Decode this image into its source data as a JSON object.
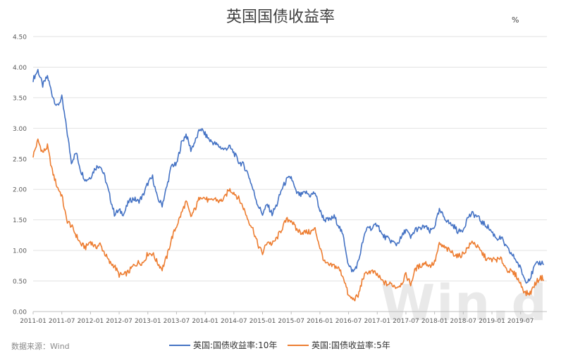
{
  "watermark": "Win.d",
  "source": "数据来源：Wind",
  "chart_data": {
    "type": "line",
    "title": "英国国债收益率",
    "unit": "%",
    "ylim": [
      0,
      4.5
    ],
    "yticks": [
      "0.00",
      "0.50",
      "1.00",
      "1.50",
      "2.00",
      "2.50",
      "3.00",
      "3.50",
      "4.00",
      "4.50"
    ],
    "xticks": [
      "2011-01",
      "2011-07",
      "2012-01",
      "2012-07",
      "2013-01",
      "2013-07",
      "2014-01",
      "2014-07",
      "2015-01",
      "2015-07",
      "2016-01",
      "2016-07",
      "2017-01",
      "2017-07",
      "2018-01",
      "2018-07",
      "2019-01",
      "2019-07"
    ],
    "grid": true,
    "legend": "bottom",
    "x": [
      "2011-01",
      "2011-02",
      "2011-03",
      "2011-04",
      "2011-05",
      "2011-06",
      "2011-07",
      "2011-08",
      "2011-09",
      "2011-10",
      "2011-11",
      "2011-12",
      "2012-01",
      "2012-02",
      "2012-03",
      "2012-04",
      "2012-05",
      "2012-06",
      "2012-07",
      "2012-08",
      "2012-09",
      "2012-10",
      "2012-11",
      "2012-12",
      "2013-01",
      "2013-02",
      "2013-03",
      "2013-04",
      "2013-05",
      "2013-06",
      "2013-07",
      "2013-08",
      "2013-09",
      "2013-10",
      "2013-11",
      "2013-12",
      "2014-01",
      "2014-02",
      "2014-03",
      "2014-04",
      "2014-05",
      "2014-06",
      "2014-07",
      "2014-08",
      "2014-09",
      "2014-10",
      "2014-11",
      "2014-12",
      "2015-01",
      "2015-02",
      "2015-03",
      "2015-04",
      "2015-05",
      "2015-06",
      "2015-07",
      "2015-08",
      "2015-09",
      "2015-10",
      "2015-11",
      "2015-12",
      "2016-01",
      "2016-02",
      "2016-03",
      "2016-04",
      "2016-05",
      "2016-06",
      "2016-07",
      "2016-08",
      "2016-09",
      "2016-10",
      "2016-11",
      "2016-12",
      "2017-01",
      "2017-02",
      "2017-03",
      "2017-04",
      "2017-05",
      "2017-06",
      "2017-07",
      "2017-08",
      "2017-09",
      "2017-10",
      "2017-11",
      "2017-12",
      "2018-01",
      "2018-02",
      "2018-03",
      "2018-04",
      "2018-05",
      "2018-06",
      "2018-07",
      "2018-08",
      "2018-09",
      "2018-10",
      "2018-11",
      "2018-12",
      "2019-01",
      "2019-02",
      "2019-03",
      "2019-04",
      "2019-05",
      "2019-06",
      "2019-07",
      "2019-08",
      "2019-09",
      "2019-10",
      "2019-11"
    ],
    "series": [
      {
        "name": "英国:国债收益率:10年",
        "color": "#4472C4",
        "values": [
          3.8,
          3.95,
          3.7,
          3.85,
          3.55,
          3.35,
          3.5,
          3.0,
          2.45,
          2.6,
          2.3,
          2.15,
          2.2,
          2.35,
          2.4,
          2.2,
          1.9,
          1.6,
          1.65,
          1.6,
          1.8,
          1.85,
          1.8,
          1.9,
          2.1,
          2.2,
          1.85,
          1.75,
          2.05,
          2.4,
          2.4,
          2.75,
          2.9,
          2.65,
          2.8,
          3.0,
          2.9,
          2.8,
          2.75,
          2.7,
          2.65,
          2.7,
          2.6,
          2.45,
          2.4,
          2.25,
          2.0,
          1.75,
          1.6,
          1.75,
          1.6,
          1.75,
          2.0,
          2.15,
          2.2,
          1.95,
          1.9,
          1.95,
          1.9,
          1.95,
          1.65,
          1.5,
          1.5,
          1.55,
          1.4,
          1.2,
          0.75,
          0.65,
          0.8,
          1.15,
          1.4,
          1.35,
          1.45,
          1.25,
          1.2,
          1.15,
          1.1,
          1.2,
          1.35,
          1.2,
          1.35,
          1.35,
          1.4,
          1.3,
          1.4,
          1.65,
          1.55,
          1.45,
          1.4,
          1.3,
          1.35,
          1.55,
          1.6,
          1.55,
          1.45,
          1.4,
          1.3,
          1.2,
          1.2,
          1.05,
          0.95,
          0.85,
          0.7,
          0.5,
          0.55,
          0.75,
          0.8
        ]
      },
      {
        "name": "英国:国债收益率:5年",
        "color": "#ED7D31",
        "values": [
          2.55,
          2.8,
          2.6,
          2.7,
          2.3,
          2.05,
          1.9,
          1.5,
          1.4,
          1.25,
          1.1,
          1.05,
          1.15,
          1.05,
          1.1,
          0.95,
          0.8,
          0.75,
          0.6,
          0.6,
          0.65,
          0.75,
          0.8,
          0.8,
          0.95,
          0.95,
          0.8,
          0.7,
          0.9,
          1.2,
          1.4,
          1.6,
          1.8,
          1.55,
          1.7,
          1.9,
          1.85,
          1.8,
          1.85,
          1.8,
          1.85,
          2.0,
          1.95,
          1.85,
          1.7,
          1.5,
          1.35,
          1.1,
          0.95,
          1.15,
          1.1,
          1.2,
          1.35,
          1.5,
          1.5,
          1.35,
          1.3,
          1.3,
          1.3,
          1.35,
          1.05,
          0.8,
          0.75,
          0.75,
          0.7,
          0.55,
          0.25,
          0.2,
          0.25,
          0.55,
          0.65,
          0.65,
          0.6,
          0.5,
          0.45,
          0.45,
          0.4,
          0.45,
          0.6,
          0.45,
          0.7,
          0.75,
          0.8,
          0.75,
          0.8,
          1.1,
          1.05,
          1.0,
          0.95,
          0.9,
          0.95,
          1.05,
          1.15,
          1.05,
          0.95,
          0.85,
          0.85,
          0.85,
          0.85,
          0.7,
          0.65,
          0.6,
          0.45,
          0.3,
          0.3,
          0.45,
          0.55
        ]
      }
    ]
  }
}
